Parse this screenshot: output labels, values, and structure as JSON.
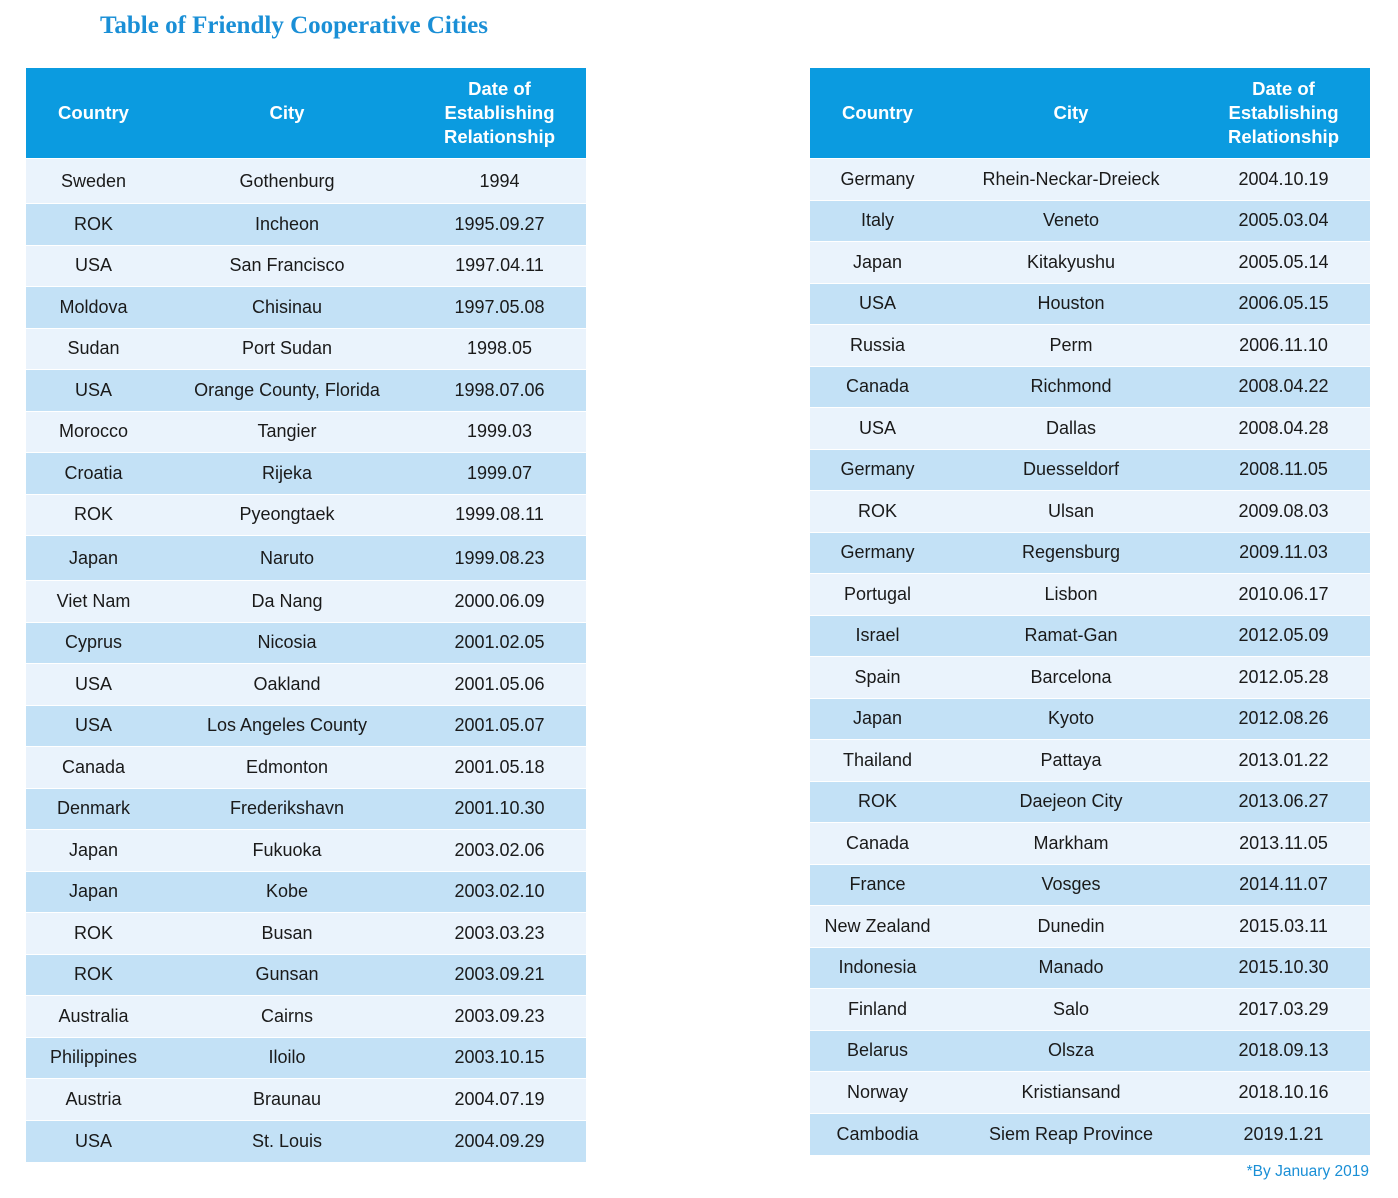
{
  "title": "Table of Friendly Cooperative Cities",
  "headers": {
    "country": "Country",
    "city": "City",
    "date": "Date of Establishing Relationship"
  },
  "left_rows": [
    {
      "country": "Sweden",
      "city": "Gothenburg",
      "date": "1994"
    },
    {
      "country": "ROK",
      "city": "Incheon",
      "date": "1995.09.27"
    },
    {
      "country": "USA",
      "city": "San Francisco",
      "date": "1997.04.11"
    },
    {
      "country": "Moldova",
      "city": "Chisinau",
      "date": "1997.05.08"
    },
    {
      "country": "Sudan",
      "city": "Port Sudan",
      "date": "1998.05"
    },
    {
      "country": "USA",
      "city": "Orange County, Florida",
      "date": "1998.07.06"
    },
    {
      "country": "Morocco",
      "city": "Tangier",
      "date": "1999.03"
    },
    {
      "country": "Croatia",
      "city": "Rijeka",
      "date": "1999.07"
    },
    {
      "country": "ROK",
      "city": "Pyeongtaek",
      "date": "1999.08.11"
    },
    {
      "country": "Japan",
      "city": "Naruto",
      "date": "1999.08.23"
    },
    {
      "country": "Viet Nam",
      "city": "Da Nang",
      "date": "2000.06.09"
    },
    {
      "country": "Cyprus",
      "city": "Nicosia",
      "date": "2001.02.05"
    },
    {
      "country": "USA",
      "city": "Oakland",
      "date": "2001.05.06"
    },
    {
      "country": "USA",
      "city": "Los Angeles County",
      "date": "2001.05.07"
    },
    {
      "country": "Canada",
      "city": "Edmonton",
      "date": "2001.05.18"
    },
    {
      "country": "Denmark",
      "city": "Frederikshavn",
      "date": "2001.10.30"
    },
    {
      "country": "Japan",
      "city": "Fukuoka",
      "date": "2003.02.06"
    },
    {
      "country": "Japan",
      "city": "Kobe",
      "date": "2003.02.10"
    },
    {
      "country": "ROK",
      "city": "Busan",
      "date": "2003.03.23"
    },
    {
      "country": "ROK",
      "city": "Gunsan",
      "date": "2003.09.21"
    },
    {
      "country": "Australia",
      "city": "Cairns",
      "date": "2003.09.23"
    },
    {
      "country": "Philippines",
      "city": "Iloilo",
      "date": "2003.10.15"
    },
    {
      "country": "Austria",
      "city": "Braunau",
      "date": "2004.07.19"
    },
    {
      "country": "USA",
      "city": "St. Louis",
      "date": "2004.09.29"
    }
  ],
  "right_rows": [
    {
      "country": "Germany",
      "city": "Rhein-Neckar-Dreieck",
      "date": "2004.10.19"
    },
    {
      "country": "Italy",
      "city": "Veneto",
      "date": "2005.03.04"
    },
    {
      "country": "Japan",
      "city": "Kitakyushu",
      "date": "2005.05.14"
    },
    {
      "country": "USA",
      "city": "Houston",
      "date": "2006.05.15"
    },
    {
      "country": "Russia",
      "city": "Perm",
      "date": "2006.11.10"
    },
    {
      "country": "Canada",
      "city": "Richmond",
      "date": "2008.04.22"
    },
    {
      "country": "USA",
      "city": "Dallas",
      "date": "2008.04.28"
    },
    {
      "country": "Germany",
      "city": "Duesseldorf",
      "date": "2008.11.05"
    },
    {
      "country": "ROK",
      "city": "Ulsan",
      "date": "2009.08.03"
    },
    {
      "country": "Germany",
      "city": "Regensburg",
      "date": "2009.11.03"
    },
    {
      "country": "Portugal",
      "city": "Lisbon",
      "date": "2010.06.17"
    },
    {
      "country": "Israel",
      "city": "Ramat-Gan",
      "date": "2012.05.09"
    },
    {
      "country": "Spain",
      "city": "Barcelona",
      "date": "2012.05.28"
    },
    {
      "country": "Japan",
      "city": "Kyoto",
      "date": "2012.08.26"
    },
    {
      "country": "Thailand",
      "city": "Pattaya",
      "date": "2013.01.22"
    },
    {
      "country": "ROK",
      "city": "Daejeon City",
      "date": "2013.06.27"
    },
    {
      "country": "Canada",
      "city": "Markham",
      "date": "2013.11.05"
    },
    {
      "country": "France",
      "city": "Vosges",
      "date": "2014.11.07"
    },
    {
      "country": "New Zealand",
      "city": "Dunedin",
      "date": "2015.03.11"
    },
    {
      "country": "Indonesia",
      "city": "Manado",
      "date": "2015.10.30"
    },
    {
      "country": "Finland",
      "city": "Salo",
      "date": "2017.03.29"
    },
    {
      "country": "Belarus",
      "city": "Olsza",
      "date": "2018.09.13"
    },
    {
      "country": "Norway",
      "city": "Kristiansand",
      "date": "2018.10.16"
    },
    {
      "country": "Cambodia",
      "city": "Siem Reap Province",
      "date": "2019.1.21"
    }
  ],
  "footnote": "*By January 2019"
}
